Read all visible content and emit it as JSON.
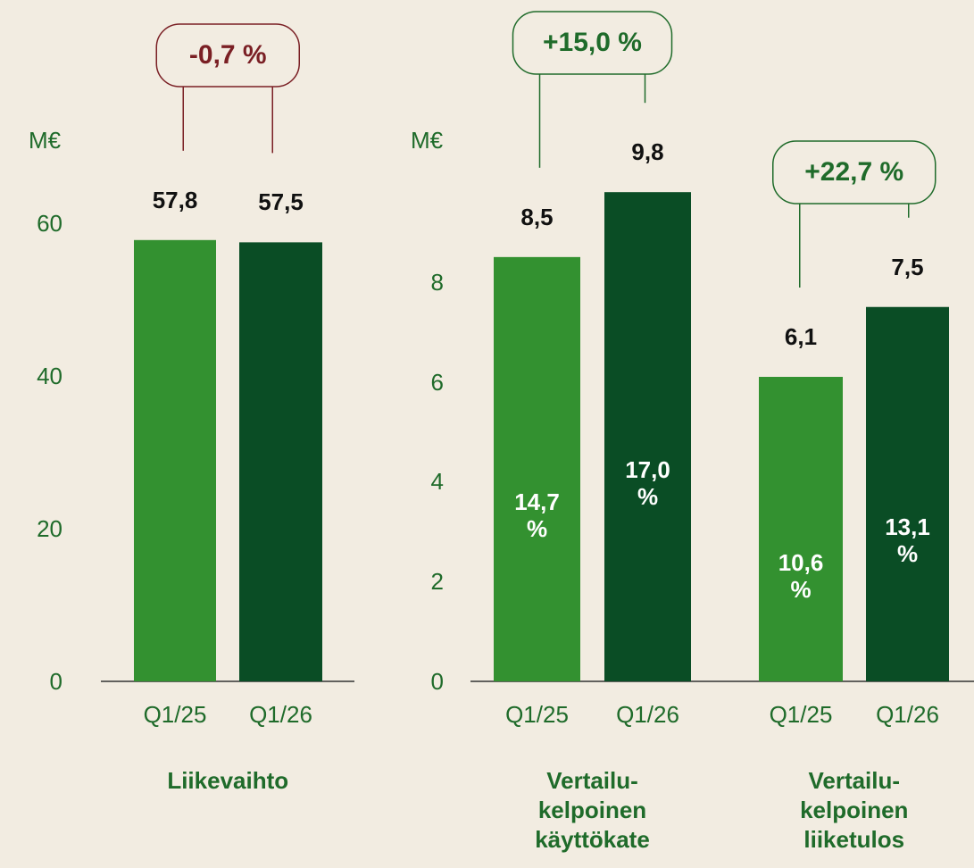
{
  "chart_data": [
    {
      "type": "bar",
      "y_label": "M€",
      "ylim": [
        0,
        70
      ],
      "yticks": [
        0,
        20,
        40,
        60
      ],
      "groups": [
        {
          "label": "Liikevaihto",
          "categories": [
            "Q1/25",
            "Q1/26"
          ],
          "values": [
            57.8,
            57.5
          ],
          "value_labels": [
            "57,8",
            "57,5"
          ],
          "colors": [
            "#339130",
            "#0a4d25"
          ],
          "change": -0.7,
          "change_label": "-0,7 %"
        }
      ]
    },
    {
      "type": "bar",
      "y_label": "M€",
      "ylim": [
        0,
        10
      ],
      "yticks": [
        0,
        2,
        4,
        6,
        8
      ],
      "groups": [
        {
          "label": "Vertailu-kelpoinen käyttökate",
          "categories": [
            "Q1/25",
            "Q1/26"
          ],
          "values": [
            8.5,
            9.8
          ],
          "value_labels": [
            "8,5",
            "9,8"
          ],
          "margins": [
            14.7,
            17.0
          ],
          "margin_labels": [
            "14,7 %",
            "17,0 %"
          ],
          "colors": [
            "#339130",
            "#0a4d25"
          ],
          "change": 15.0,
          "change_label": "+15,0 %"
        },
        {
          "label": "Vertailu-kelpoinen liiketulos",
          "categories": [
            "Q1/25",
            "Q1/26"
          ],
          "values": [
            6.1,
            7.5
          ],
          "value_labels": [
            "6,1",
            "7,5"
          ],
          "margins": [
            10.6,
            13.1
          ],
          "margin_labels": [
            "10,6 %",
            "13,1 %"
          ],
          "colors": [
            "#339130",
            "#0a4d25"
          ],
          "change": 22.7,
          "change_label": "+22,7 %"
        }
      ]
    }
  ]
}
